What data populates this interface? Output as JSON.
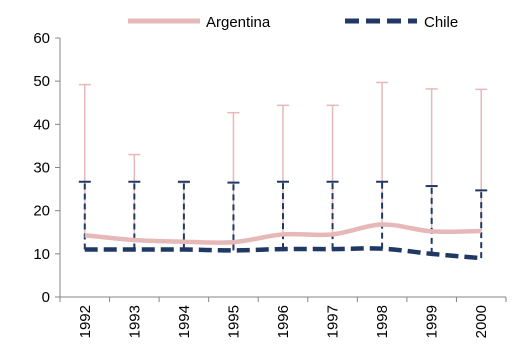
{
  "chart_data": {
    "type": "line",
    "title": "",
    "xlabel": "",
    "ylabel": "",
    "categories": [
      "1992",
      "1993",
      "1994",
      "1995",
      "1996",
      "1997",
      "1998",
      "1999",
      "2000"
    ],
    "ylim": [
      0,
      60
    ],
    "yticks": [
      "0",
      "10",
      "20",
      "30",
      "40",
      "50",
      "60"
    ],
    "grid": false,
    "legend_position": "top",
    "series": [
      {
        "name": "Argentina",
        "color": "#e6b9b8",
        "style": "solid",
        "values": [
          14.3,
          13.2,
          12.8,
          12.7,
          14.5,
          14.5,
          16.8,
          15.2,
          15.3
        ],
        "error_upper": [
          49.2,
          33.0,
          26.5,
          42.7,
          44.4,
          44.4,
          49.7,
          48.2,
          48.1
        ]
      },
      {
        "name": "Chile",
        "color": "#1f3864",
        "style": "dashed",
        "values": [
          11.0,
          11.0,
          11.0,
          10.8,
          11.1,
          11.1,
          11.2,
          10.0,
          9.0
        ],
        "error_upper": [
          26.7,
          26.7,
          26.7,
          26.5,
          26.7,
          26.7,
          26.7,
          25.7,
          24.7
        ]
      }
    ]
  }
}
